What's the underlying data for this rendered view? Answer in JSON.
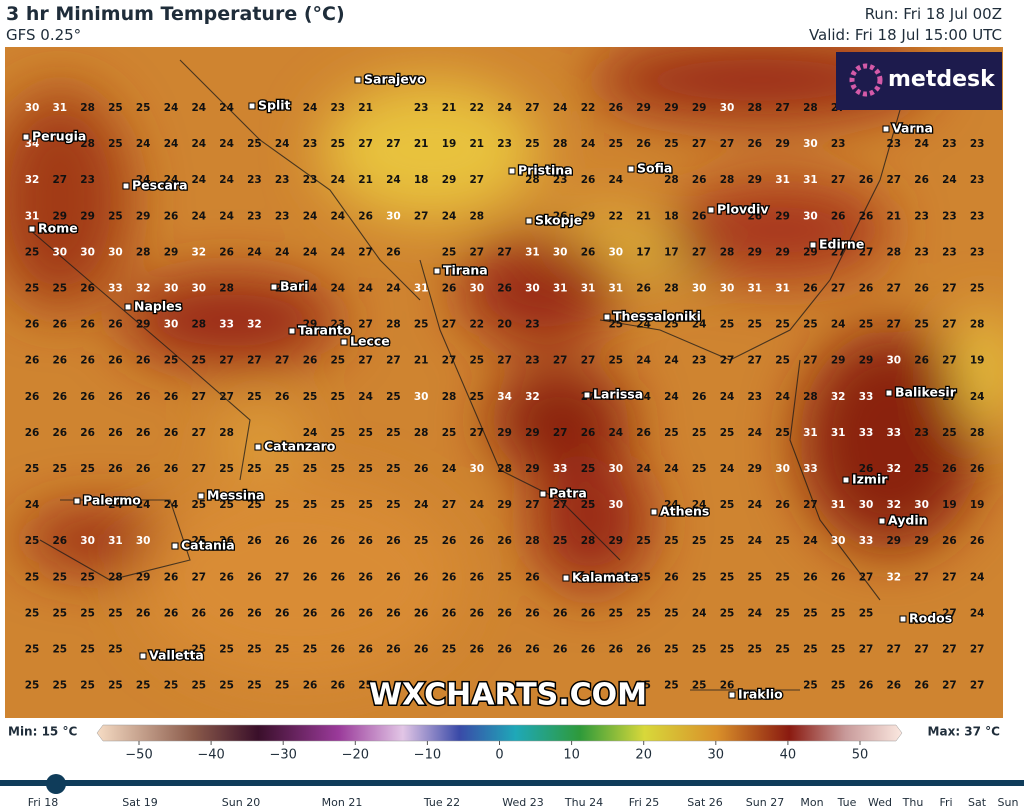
{
  "header": {
    "title": "3 hr Minimum Temperature (°C)",
    "subtitle": "GFS 0.25°",
    "run": "Run: Fri 18 Jul 00Z",
    "valid": "Valid: Fri 18 Jul 15:00 UTC"
  },
  "logo": "metdesk",
  "watermark": "WXCHARTS.COM",
  "map": {
    "cities": [
      "Sarajevo",
      "Split",
      "Perugia",
      "Varna",
      "Pristina",
      "Sofia",
      "Pescara",
      "Plovdiv",
      "Skopje",
      "Rome",
      "Edirne",
      "Tirana",
      "Bari",
      "Naples",
      "Thessaloniki",
      "Taranto",
      "Lecce",
      "Larissa",
      "Balikesir",
      "Catanzaro",
      "Izmir",
      "Patra",
      "Palermo",
      "Messina",
      "Athens",
      "Aydin",
      "Catania",
      "Kalamata",
      "Rodos",
      "Valletta",
      "Iraklio"
    ],
    "grid": [
      [
        30,
        31,
        28,
        25,
        25,
        24,
        24,
        24,
        null,
        null,
        24,
        23,
        21,
        null,
        23,
        21,
        22,
        24,
        27,
        24,
        22,
        26,
        29,
        29,
        29,
        30,
        28,
        27,
        28,
        27,
        null,
        null,
        null,
        null,
        null
      ],
      [
        34,
        null,
        28,
        25,
        24,
        24,
        24,
        24,
        25,
        24,
        23,
        25,
        27,
        27,
        21,
        19,
        21,
        23,
        25,
        28,
        24,
        25,
        26,
        25,
        27,
        27,
        26,
        29,
        30,
        23,
        null,
        23,
        24,
        23,
        23
      ],
      [
        32,
        27,
        23,
        null,
        24,
        24,
        24,
        24,
        23,
        23,
        23,
        24,
        21,
        24,
        18,
        29,
        27,
        null,
        28,
        23,
        26,
        24,
        null,
        28,
        26,
        28,
        29,
        31,
        31,
        27,
        26,
        27,
        26,
        24,
        23
      ],
      [
        31,
        29,
        29,
        25,
        29,
        26,
        24,
        24,
        23,
        23,
        24,
        24,
        26,
        30,
        27,
        24,
        28,
        null,
        null,
        26,
        29,
        22,
        21,
        18,
        26,
        null,
        26,
        29,
        30,
        26,
        26,
        21,
        23,
        23,
        23
      ],
      [
        25,
        30,
        30,
        30,
        28,
        29,
        32,
        26,
        24,
        24,
        24,
        24,
        27,
        26,
        null,
        25,
        27,
        27,
        31,
        30,
        26,
        30,
        17,
        17,
        27,
        28,
        29,
        29,
        29,
        27,
        27,
        28,
        23,
        23,
        23
      ],
      [
        25,
        25,
        26,
        33,
        32,
        30,
        30,
        28,
        null,
        25,
        24,
        24,
        24,
        24,
        31,
        26,
        30,
        26,
        30,
        31,
        31,
        31,
        26,
        28,
        30,
        30,
        31,
        31,
        26,
        27,
        26,
        27,
        26,
        27,
        25
      ],
      [
        26,
        26,
        26,
        26,
        29,
        30,
        28,
        33,
        32,
        null,
        29,
        23,
        27,
        28,
        25,
        27,
        22,
        20,
        23,
        null,
        null,
        25,
        24,
        25,
        24,
        25,
        25,
        25,
        25,
        24,
        25,
        27,
        25,
        27,
        28
      ],
      [
        26,
        26,
        26,
        26,
        26,
        25,
        25,
        27,
        27,
        27,
        26,
        25,
        27,
        27,
        21,
        27,
        25,
        27,
        23,
        27,
        27,
        25,
        24,
        24,
        23,
        27,
        27,
        25,
        27,
        29,
        29,
        30,
        26,
        27,
        19
      ],
      [
        26,
        26,
        26,
        26,
        26,
        26,
        27,
        27,
        25,
        26,
        25,
        25,
        24,
        25,
        30,
        28,
        25,
        34,
        32,
        null,
        27,
        24,
        24,
        24,
        26,
        24,
        23,
        24,
        28,
        32,
        33,
        null,
        null,
        27,
        24
      ],
      [
        26,
        26,
        26,
        26,
        26,
        26,
        27,
        28,
        null,
        null,
        24,
        25,
        25,
        25,
        28,
        25,
        27,
        29,
        29,
        27,
        26,
        24,
        26,
        25,
        25,
        25,
        24,
        25,
        31,
        31,
        33,
        33,
        23,
        25,
        28
      ],
      [
        25,
        25,
        25,
        26,
        26,
        26,
        27,
        25,
        25,
        25,
        25,
        25,
        25,
        25,
        26,
        24,
        30,
        28,
        29,
        33,
        25,
        30,
        24,
        24,
        25,
        24,
        29,
        30,
        33,
        null,
        26,
        32,
        25,
        26,
        26
      ],
      [
        24,
        null,
        null,
        24,
        24,
        24,
        25,
        25,
        25,
        25,
        25,
        25,
        25,
        25,
        24,
        27,
        24,
        29,
        27,
        27,
        25,
        30,
        null,
        24,
        24,
        25,
        24,
        26,
        27,
        31,
        30,
        32,
        30,
        19,
        19
      ],
      [
        25,
        26,
        30,
        31,
        30,
        null,
        25,
        26,
        26,
        26,
        26,
        26,
        26,
        26,
        25,
        26,
        26,
        26,
        28,
        25,
        28,
        29,
        25,
        25,
        25,
        25,
        24,
        25,
        24,
        30,
        33,
        29,
        29,
        26,
        26
      ],
      [
        25,
        25,
        25,
        28,
        29,
        26,
        27,
        26,
        26,
        27,
        26,
        26,
        26,
        26,
        26,
        26,
        26,
        25,
        26,
        null,
        null,
        25,
        25,
        26,
        25,
        25,
        25,
        25,
        26,
        26,
        27,
        32,
        27,
        27,
        24
      ],
      [
        25,
        25,
        25,
        25,
        26,
        26,
        26,
        26,
        26,
        26,
        26,
        26,
        26,
        26,
        26,
        26,
        26,
        26,
        26,
        26,
        26,
        25,
        25,
        25,
        24,
        25,
        24,
        25,
        25,
        25,
        25,
        null,
        null,
        27,
        24
      ],
      [
        25,
        25,
        25,
        25,
        null,
        null,
        25,
        25,
        25,
        25,
        25,
        26,
        26,
        26,
        26,
        25,
        26,
        26,
        26,
        26,
        26,
        26,
        26,
        25,
        25,
        25,
        25,
        25,
        25,
        25,
        27,
        27,
        27,
        27,
        27
      ],
      [
        25,
        25,
        25,
        25,
        25,
        25,
        25,
        25,
        25,
        25,
        26,
        26,
        25,
        null,
        null,
        null,
        null,
        null,
        null,
        null,
        null,
        null,
        25,
        25,
        25,
        26,
        null,
        null,
        25,
        25,
        26,
        26,
        26,
        27,
        27
      ]
    ]
  },
  "legend": {
    "min_label": "Min: 15 °C",
    "max_label": "Max: 37 °C",
    "ticks": [
      {
        "value": -50,
        "label": "−50"
      },
      {
        "value": -40,
        "label": "−40"
      },
      {
        "value": -30,
        "label": "−30"
      },
      {
        "value": -20,
        "label": "−20"
      },
      {
        "value": -10,
        "label": "−10"
      },
      0,
      10,
      20,
      30,
      40,
      50
    ]
  },
  "timeline": {
    "days": [
      "Fri 18",
      "Sat 19",
      "Sun 20",
      "Mon 21",
      "Tue 22",
      "Wed 23",
      "Thu 24",
      "Fri 25",
      "Sat 26",
      "Sun 27",
      "Mon",
      "Tue",
      "Wed",
      "Thu",
      "Fri",
      "Sat",
      "Sun"
    ]
  }
}
